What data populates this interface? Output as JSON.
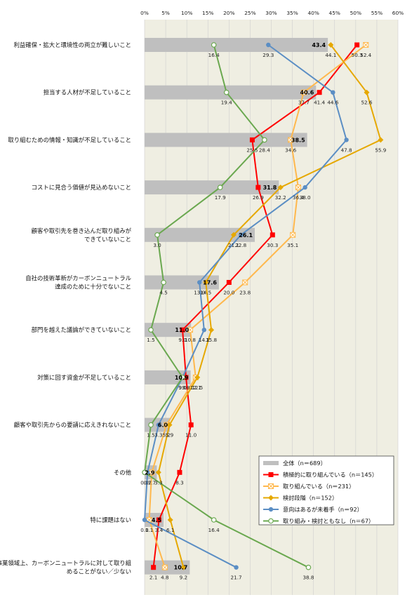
{
  "chart_data": {
    "type": "bar",
    "orientation": "horizontal",
    "xlim": [
      0,
      60
    ],
    "x_ticks": [
      "0%",
      "5%",
      "10%",
      "15%",
      "20%",
      "25%",
      "30%",
      "35%",
      "40%",
      "45%",
      "50%",
      "55%",
      "60%"
    ],
    "categories": [
      [
        "利益確保・拡大と環境性の両立が難しいこと"
      ],
      [
        "担当する人材が不足していること"
      ],
      [
        "取り組むための情報・知識が不足していること"
      ],
      [
        "コストに見合う価値が見込めないこと"
      ],
      [
        "顧客や取引先を巻き込んだ取り組みが",
        "できていないこと"
      ],
      [
        "自社の技術革新がカーボンニュートラル",
        "達成のために十分でないこと"
      ],
      [
        "部門を越えた議論ができていないこと"
      ],
      [
        "対策に回す資金が不足していること"
      ],
      [
        "顧客や取引先からの要請に応えきれないこと"
      ],
      [
        "その他"
      ],
      [
        "特に課題はない"
      ],
      [
        "事業領域上、カーボンニュートラルに対して取り組",
        "めることがない／少ない"
      ]
    ],
    "bar_series": {
      "name": "全体（n＝689）",
      "color": "#bfbfbf",
      "values": [
        43.4,
        40.6,
        38.5,
        31.8,
        26.1,
        17.6,
        11.0,
        10.9,
        6.0,
        2.9,
        4.5,
        10.7
      ]
    },
    "line_series": [
      {
        "name": "積極的に取り組んでいる（n＝145）",
        "color": "#ff0000",
        "marker": "square",
        "values": [
          50.3,
          41.4,
          25.5,
          26.9,
          30.3,
          20.0,
          9.0,
          9.8,
          11.0,
          8.3,
          3.4,
          2.1
        ]
      },
      {
        "name": "取り組んでいる（n＝231）",
        "color": "#ffb84d",
        "marker": "x-square",
        "values": [
          52.4,
          37.7,
          34.6,
          36.4,
          35.1,
          23.8,
          10.8,
          12.1,
          5.2,
          1.7,
          1.1,
          4.8
        ]
      },
      {
        "name": "検討段階（n＝152）",
        "color": "#e6a800",
        "marker": "diamond",
        "values": [
          44.1,
          52.6,
          55.9,
          32.2,
          21.1,
          14.5,
          15.8,
          12.5,
          5.9,
          3.3,
          6.1,
          9.2
        ]
      },
      {
        "name": "意向はあるが未着手（n＝92）",
        "color": "#5b8ec4",
        "marker": "circle",
        "values": [
          29.3,
          44.6,
          47.8,
          38.0,
          22.8,
          13.0,
          14.1,
          9.0,
          3.3,
          0.7,
          0.0,
          21.7
        ]
      },
      {
        "name": "取り組み・検討ともなし（n＝67）",
        "color": "#6aa84f",
        "marker": "open-circle",
        "values": [
          16.4,
          19.4,
          28.4,
          17.9,
          3.0,
          4.5,
          1.5,
          9.0,
          1.5,
          0.0,
          16.4,
          38.8
        ]
      }
    ],
    "legend_position": "bottom-right",
    "grid": "vertical"
  }
}
